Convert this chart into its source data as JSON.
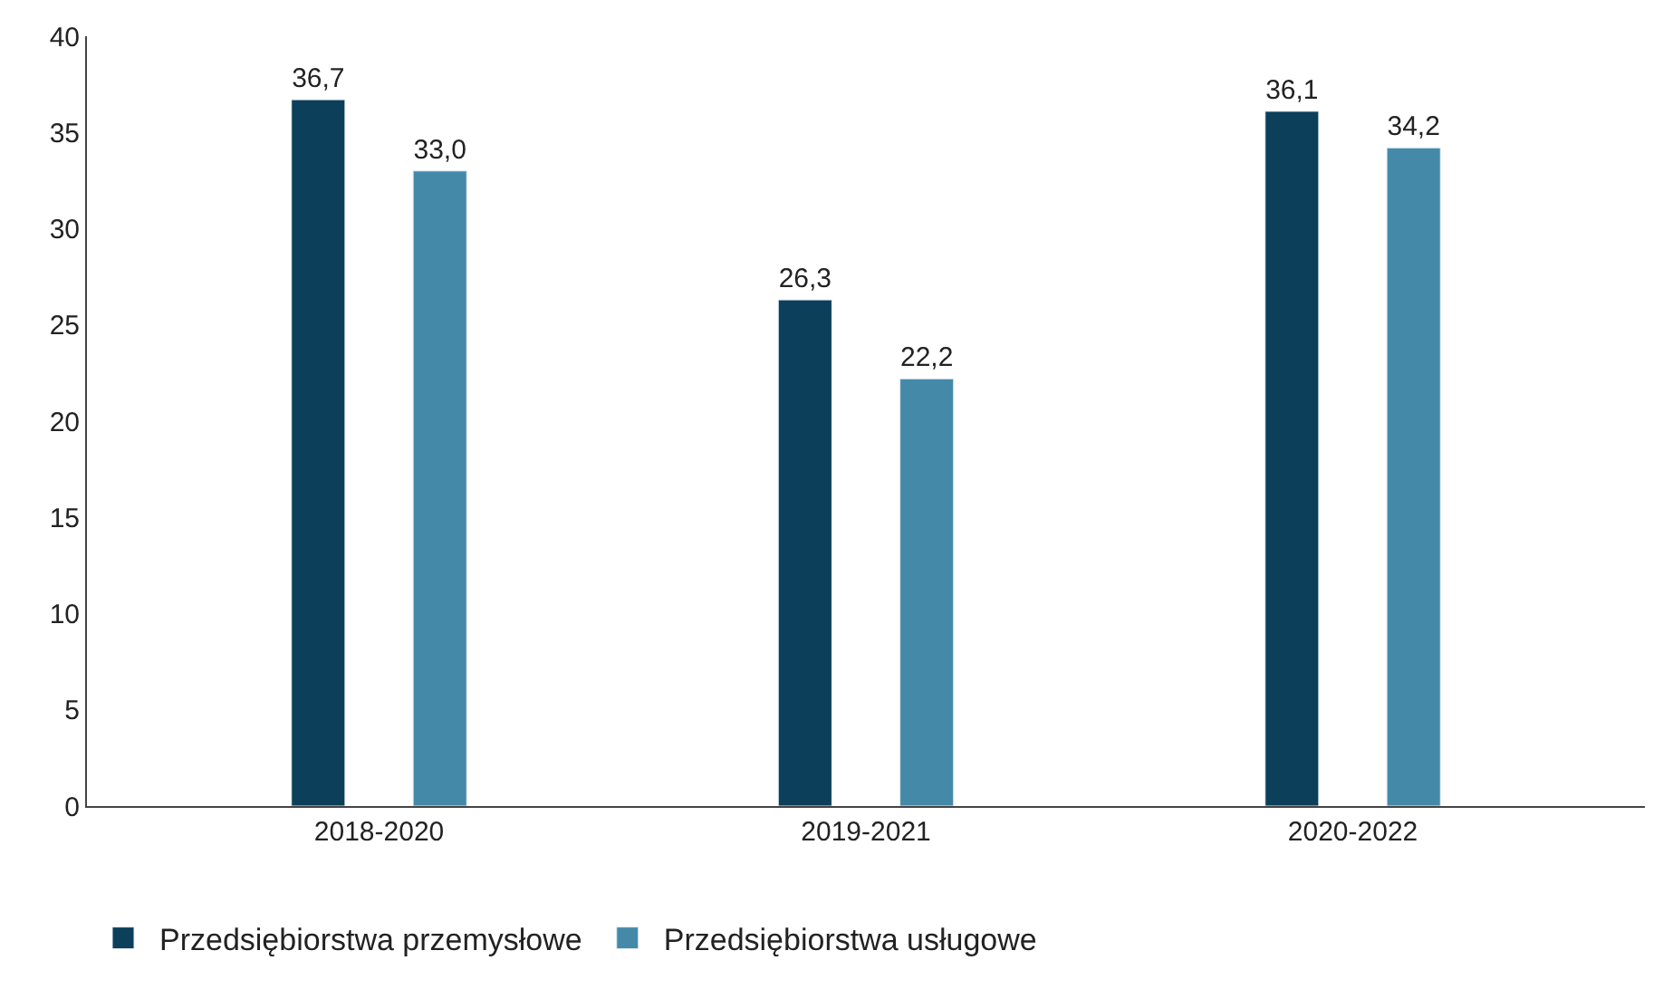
{
  "chart_data": {
    "type": "bar",
    "categories": [
      "2018-2020",
      "2019-2021",
      "2020-2022"
    ],
    "series": [
      {
        "name": "Przedsiębiorstwa przemysłowe",
        "color": "#0b3f5a",
        "values": [
          36.7,
          26.3,
          36.1
        ],
        "value_labels": [
          "36,7",
          "26,3",
          "36,1"
        ]
      },
      {
        "name": "Przedsiębiorstwa usługowe",
        "color": "#448aa8",
        "values": [
          33.0,
          22.2,
          34.2
        ],
        "value_labels": [
          "33,0",
          "22,2",
          "34,2"
        ]
      }
    ],
    "ylim": [
      0,
      40
    ],
    "yticks": [
      0,
      5,
      10,
      15,
      20,
      25,
      30,
      35,
      40
    ],
    "legend": "bottom left"
  }
}
